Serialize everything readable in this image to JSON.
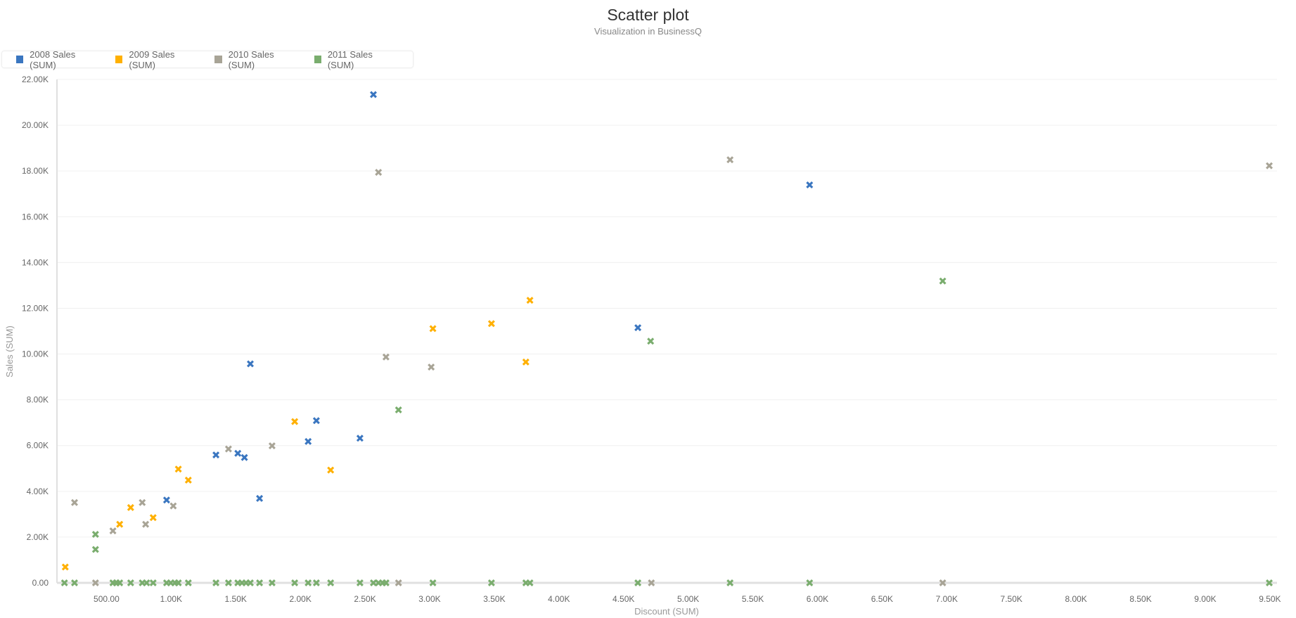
{
  "chart_data": {
    "type": "scatter",
    "title": "Scatter plot",
    "subtitle": "Visualization in BusinessQ",
    "xlabel": "Discount (SUM)",
    "ylabel": "Sales (SUM)",
    "xlim": [
      117,
      9555
    ],
    "ylim": [
      0,
      22000
    ],
    "grid": true,
    "legend_position": "top-left",
    "marker": "x-cross",
    "x_ticks": [
      {
        "value": 500,
        "label": "500.00"
      },
      {
        "value": 1000,
        "label": "1.00K"
      },
      {
        "value": 1500,
        "label": "1.50K"
      },
      {
        "value": 2000,
        "label": "2.00K"
      },
      {
        "value": 2500,
        "label": "2.50K"
      },
      {
        "value": 3000,
        "label": "3.00K"
      },
      {
        "value": 3500,
        "label": "3.50K"
      },
      {
        "value": 4000,
        "label": "4.00K"
      },
      {
        "value": 4500,
        "label": "4.50K"
      },
      {
        "value": 5000,
        "label": "5.00K"
      },
      {
        "value": 5500,
        "label": "5.50K"
      },
      {
        "value": 6000,
        "label": "6.00K"
      },
      {
        "value": 6500,
        "label": "6.50K"
      },
      {
        "value": 7000,
        "label": "7.00K"
      },
      {
        "value": 7500,
        "label": "7.50K"
      },
      {
        "value": 8000,
        "label": "8.00K"
      },
      {
        "value": 8500,
        "label": "8.50K"
      },
      {
        "value": 9000,
        "label": "9.00K"
      },
      {
        "value": 9500,
        "label": "9.50K"
      }
    ],
    "y_ticks": [
      {
        "value": 0,
        "label": "0.00"
      },
      {
        "value": 2000,
        "label": "2.00K"
      },
      {
        "value": 4000,
        "label": "4.00K"
      },
      {
        "value": 6000,
        "label": "6.00K"
      },
      {
        "value": 8000,
        "label": "8.00K"
      },
      {
        "value": 10000,
        "label": "10.00K"
      },
      {
        "value": 12000,
        "label": "12.00K"
      },
      {
        "value": 14000,
        "label": "14.00K"
      },
      {
        "value": 16000,
        "label": "16.00K"
      },
      {
        "value": 18000,
        "label": "18.00K"
      },
      {
        "value": 20000,
        "label": "20.00K"
      },
      {
        "value": 22000,
        "label": "22.00K"
      }
    ],
    "series": [
      {
        "name": "2008 Sales (SUM)",
        "color": "#3a76c0",
        "points": [
          [
            2565,
            21340
          ],
          [
            5939,
            17390
          ],
          [
            4611,
            11150
          ],
          [
            1613,
            9570
          ],
          [
            2124,
            7090
          ],
          [
            2060,
            6180
          ],
          [
            2461,
            6320
          ],
          [
            1347,
            5590
          ],
          [
            1516,
            5660
          ],
          [
            1567,
            5480
          ],
          [
            1684,
            3690
          ],
          [
            965,
            3620
          ]
        ]
      },
      {
        "name": "2009 Sales (SUM)",
        "color": "#ffb000",
        "points": [
          [
            3776,
            12350
          ],
          [
            3478,
            11330
          ],
          [
            3025,
            11110
          ],
          [
            3744,
            9650
          ],
          [
            1956,
            7050
          ],
          [
            2234,
            4930
          ],
          [
            1056,
            4970
          ],
          [
            1133,
            4490
          ],
          [
            687,
            3290
          ],
          [
            861,
            2850
          ],
          [
            602,
            2560
          ],
          [
            181,
            690
          ]
        ]
      },
      {
        "name": "2010 Sales (SUM)",
        "color": "#a8a496",
        "points": [
          [
            5324,
            18490
          ],
          [
            9495,
            18230
          ],
          [
            2604,
            17940
          ],
          [
            2662,
            9870
          ],
          [
            3012,
            9430
          ],
          [
            1781,
            5990
          ],
          [
            1444,
            5850
          ],
          [
            253,
            3510
          ],
          [
            777,
            3510
          ],
          [
            1017,
            3360
          ],
          [
            803,
            2560
          ],
          [
            550,
            2270
          ],
          [
            415,
            0
          ],
          [
            2759,
            0
          ],
          [
            4715,
            0
          ],
          [
            6969,
            0
          ]
        ]
      },
      {
        "name": "2011 Sales (SUM)",
        "color": "#7aad6e",
        "points": [
          [
            6969,
            13190
          ],
          [
            4709,
            10560
          ],
          [
            2759,
            7560
          ],
          [
            415,
            2120
          ],
          [
            415,
            1460
          ],
          [
            175,
            0
          ],
          [
            253,
            0
          ],
          [
            550,
            0
          ],
          [
            576,
            0
          ],
          [
            602,
            0
          ],
          [
            687,
            0
          ],
          [
            777,
            0
          ],
          [
            810,
            0
          ],
          [
            861,
            0
          ],
          [
            965,
            0
          ],
          [
            997,
            0
          ],
          [
            1030,
            0
          ],
          [
            1056,
            0
          ],
          [
            1133,
            0
          ],
          [
            1347,
            0
          ],
          [
            1444,
            0
          ],
          [
            1516,
            0
          ],
          [
            1548,
            0
          ],
          [
            1580,
            0
          ],
          [
            1613,
            0
          ],
          [
            1684,
            0
          ],
          [
            1781,
            0
          ],
          [
            1956,
            0
          ],
          [
            2060,
            0
          ],
          [
            2124,
            0
          ],
          [
            2234,
            0
          ],
          [
            2461,
            0
          ],
          [
            2565,
            0
          ],
          [
            2604,
            0
          ],
          [
            2636,
            0
          ],
          [
            2662,
            0
          ],
          [
            3025,
            0
          ],
          [
            3478,
            0
          ],
          [
            3744,
            0
          ],
          [
            3776,
            0
          ],
          [
            4611,
            0
          ],
          [
            5324,
            0
          ],
          [
            5939,
            0
          ],
          [
            9495,
            0
          ]
        ]
      }
    ]
  }
}
